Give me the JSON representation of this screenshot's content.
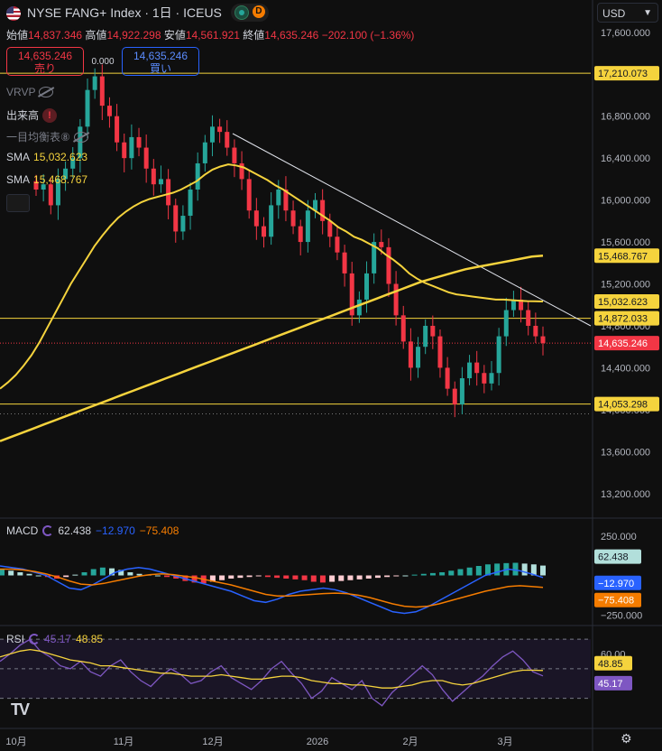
{
  "header": {
    "title": "NYSE FANG+ Index · 1日 · ICEUS",
    "badge_d": "D",
    "currency": "USD"
  },
  "ohlc": {
    "open_label": "始値",
    "open": "14,837.346",
    "high_label": "高値",
    "high": "14,922.298",
    "low_label": "安値",
    "low": "14,561.921",
    "close_label": "終値",
    "close": "14,635.246",
    "change": "−202.100 (−1.36%)"
  },
  "trade": {
    "sell_price": "14,635.246",
    "sell_label": "売り",
    "spread": "0.000",
    "buy_price": "14,635.246",
    "buy_label": "買い"
  },
  "indicators": {
    "vrvp": "VRVP",
    "volume": "出来高",
    "ichimoku": "一目均衡表⑧",
    "sma1_label": "SMA",
    "sma1_value": "15,032.623",
    "sma2_label": "SMA",
    "sma2_value": "15,468.767"
  },
  "macd": {
    "label": "MACD",
    "hist": "62.438",
    "macd": "−12.970",
    "signal": "−75.408"
  },
  "rsi": {
    "label": "RSI",
    "value": "45.17",
    "ma": "48.85"
  },
  "colors": {
    "up": "#26a69a",
    "down": "#f23645",
    "sma": "#f5d33d",
    "macd": "#2962ff",
    "signal": "#f57c00",
    "rsi": "#7e57c2",
    "rsi_ma": "#f5d33d"
  },
  "chart_data": [
    {
      "type": "candlestick",
      "title": "NYSE FANG+ Index",
      "yticks": [
        "17,600.000",
        "17,200.000",
        "16,800.000",
        "16,400.000",
        "16,000.000",
        "15,600.000",
        "15,200.000",
        "14,800.000",
        "14,400.000",
        "14,000.000",
        "13,600.000",
        "13,200.000"
      ],
      "y_axis_values": [
        17600,
        17200,
        16800,
        16400,
        16000,
        15600,
        15200,
        14800,
        14400,
        14000,
        13600,
        13200
      ],
      "ylim": [
        13000,
        17650
      ],
      "xticks": [
        "10月",
        "11月",
        "12月",
        "2026",
        "2月",
        "3月"
      ],
      "price_labels": [
        {
          "text": "17,210.073",
          "value": 17210.073,
          "kind": "hline"
        },
        {
          "text": "15,468.767",
          "value": 15468.767,
          "kind": "sma"
        },
        {
          "text": "15,032.623",
          "value": 15032.623,
          "kind": "sma"
        },
        {
          "text": "14,872.033",
          "value": 14872.033,
          "kind": "hline"
        },
        {
          "text": "14,635.246",
          "value": 14635.246,
          "kind": "last"
        },
        {
          "text": "14,053.298",
          "value": 14053.298,
          "kind": "hline"
        }
      ],
      "close_path": [
        16100,
        16150,
        15950,
        16200,
        16300,
        16400,
        16700,
        17050,
        17180,
        16900,
        16800,
        16550,
        16400,
        16600,
        16500,
        16300,
        16150,
        16200,
        15950,
        15700,
        15850,
        16100,
        16350,
        16550,
        16700,
        16650,
        16500,
        16350,
        16200,
        15900,
        15750,
        15650,
        15950,
        16100,
        15900,
        15750,
        15600,
        15900,
        16000,
        15800,
        15650,
        15500,
        15300,
        14900,
        15050,
        15300,
        15600,
        15550,
        15200,
        14900,
        14650,
        14400,
        14600,
        14800,
        14700,
        14400,
        14200,
        14050,
        14300,
        14450,
        14350,
        14250,
        14350,
        14700,
        14950,
        15050,
        14950,
        14800,
        14700,
        14635
      ],
      "series": [
        {
          "name": "SMA",
          "values": [
            14200,
            14260,
            14330,
            14420,
            14520,
            14640,
            14780,
            14920,
            15060,
            15200,
            15320,
            15440,
            15560,
            15660,
            15750,
            15830,
            15890,
            15940,
            15980,
            16010,
            16030,
            16050,
            16070,
            16100,
            16140,
            16180,
            16240,
            16290,
            16320,
            16340,
            16330,
            16310,
            16270,
            16230,
            16190,
            16140,
            16100,
            16050,
            16000,
            15950,
            15900,
            15850,
            15800,
            15740,
            15700,
            15650,
            15620,
            15580,
            15540,
            15480,
            15430,
            15370,
            15300,
            15250,
            15210,
            15180,
            15150,
            15120,
            15100,
            15090,
            15080,
            15070,
            15060,
            15050,
            15050,
            15045,
            15040,
            15036,
            15034,
            15032.623
          ]
        },
        {
          "name": "SMA",
          "values": [
            13700,
            13740,
            13780,
            13820,
            13860,
            13900,
            13940,
            13980,
            14020,
            14060,
            14100,
            14140,
            14180,
            14220,
            14260,
            14300,
            14340,
            14380,
            14420,
            14460,
            14500,
            14540,
            14580,
            14620,
            14660,
            14700,
            14740,
            14780,
            14820,
            14860,
            14900,
            14940,
            14980,
            15020,
            15060,
            15100,
            15140,
            15180,
            15220,
            15250,
            15280,
            15310,
            15340,
            15360,
            15380,
            15400,
            15420,
            15440,
            15460,
            15468.767
          ]
        }
      ]
    },
    {
      "type": "bar",
      "title": "MACD",
      "ylim": [
        -300,
        300
      ],
      "yticks": [
        "250.000",
        "−250.000"
      ],
      "y_axis_values": [
        250,
        -250
      ],
      "value_labels": [
        {
          "text": "62.438",
          "value": 62.438
        },
        {
          "text": "−12.970",
          "value": -12.97
        },
        {
          "text": "−75.408",
          "value": -75.408
        }
      ],
      "values": [
        40,
        30,
        20,
        10,
        0,
        -10,
        -20,
        -10,
        5,
        20,
        40,
        50,
        45,
        35,
        20,
        10,
        5,
        0,
        -10,
        -20,
        -35,
        -45,
        -50,
        -40,
        -30,
        -20,
        -15,
        -10,
        -5,
        -10,
        -15,
        -20,
        -25,
        -30,
        -40,
        -45,
        -40,
        -35,
        -30,
        -25,
        -20,
        -15,
        -10,
        -5,
        0,
        5,
        10,
        15,
        20,
        30,
        40,
        50,
        60,
        70,
        75,
        78,
        80,
        75,
        70,
        62.438
      ]
    },
    {
      "type": "line",
      "title": "RSI",
      "ylim": [
        20,
        75
      ],
      "yticks": [
        "60.00",
        "40.00"
      ],
      "y_axis_values": [
        60,
        40
      ],
      "value_labels": [
        {
          "text": "48.85",
          "value": 48.85
        },
        {
          "text": "45.17",
          "value": 45.17
        }
      ],
      "series": [
        {
          "name": "RSI",
          "values": [
            55,
            60,
            66,
            70,
            62,
            58,
            52,
            50,
            55,
            48,
            45,
            52,
            56,
            48,
            42,
            38,
            45,
            50,
            46,
            40,
            42,
            48,
            52,
            44,
            40,
            36,
            42,
            50,
            55,
            47,
            40,
            30,
            35,
            44,
            40,
            36,
            42,
            30,
            25,
            34,
            40,
            46,
            52,
            46,
            36,
            28,
            34,
            40,
            45,
            52,
            58,
            62,
            56,
            48,
            45.17
          ]
        },
        {
          "name": "RSI",
          "values": [
            58,
            60,
            62,
            63,
            62,
            60,
            58,
            56,
            55,
            54,
            52,
            52,
            51,
            50,
            49,
            48,
            47,
            47,
            46,
            45,
            45,
            45,
            46,
            45,
            44,
            43,
            43,
            44,
            45,
            45,
            44,
            42,
            41,
            40,
            40,
            39,
            39,
            38,
            37,
            37,
            38,
            39,
            41,
            42,
            42,
            40,
            39,
            40,
            42,
            44,
            46,
            48,
            49,
            49,
            48.85
          ]
        }
      ]
    }
  ]
}
